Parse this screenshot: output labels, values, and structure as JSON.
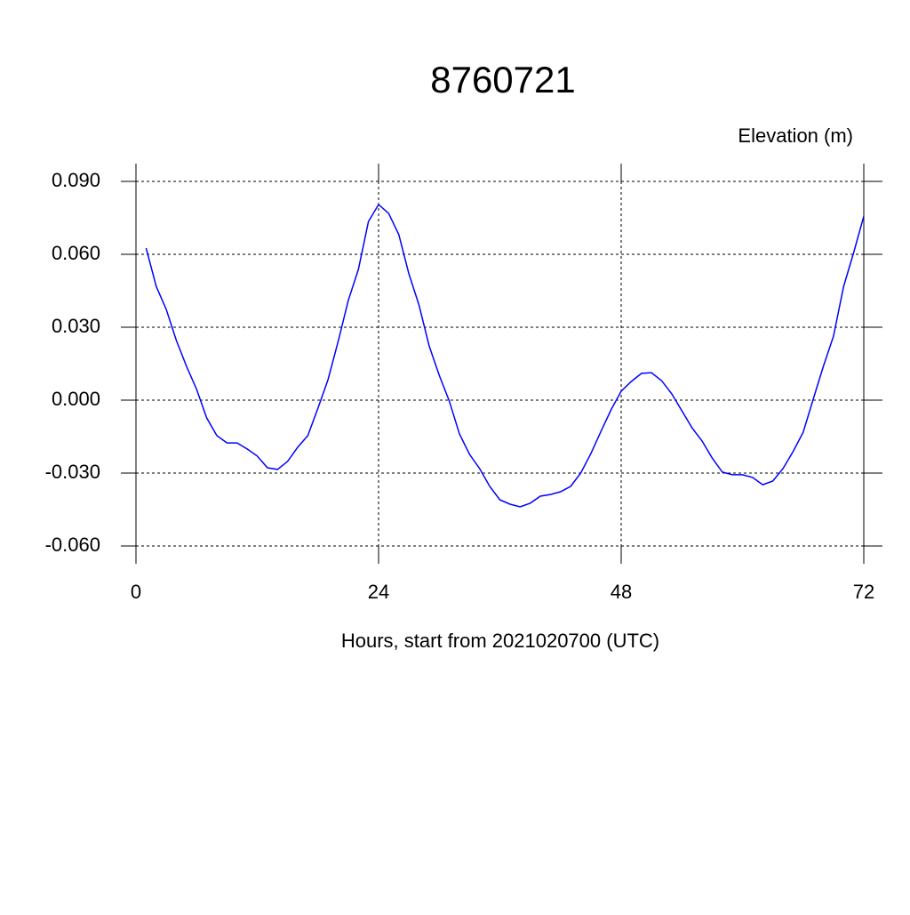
{
  "chart_data": {
    "type": "line",
    "title": "8760721",
    "ylabel": "Elevation (m)",
    "xlabel": "Hours, start from 2021020700 (UTC)",
    "x": [
      1,
      2,
      3,
      4,
      5,
      6,
      7,
      8,
      9,
      10,
      11,
      12,
      13,
      14,
      15,
      16,
      17,
      18,
      19,
      20,
      21,
      22,
      23,
      24,
      25,
      26,
      27,
      28,
      29,
      30,
      31,
      32,
      33,
      34,
      35,
      36,
      37,
      38,
      39,
      40,
      41,
      42,
      43,
      44,
      45,
      46,
      47,
      48,
      49,
      50,
      51,
      52,
      53,
      54,
      55,
      56,
      57,
      58,
      59,
      60,
      61,
      62,
      63,
      64,
      65,
      66,
      67,
      68,
      69,
      70,
      71,
      72
    ],
    "series": [
      {
        "name": "Elevation",
        "color": "#0000ff",
        "values": [
          0.0626,
          0.0468,
          0.0373,
          0.0245,
          0.0139,
          0.0044,
          -0.0073,
          -0.0146,
          -0.0176,
          -0.0176,
          -0.0201,
          -0.023,
          -0.0278,
          -0.0285,
          -0.0252,
          -0.0194,
          -0.0146,
          -0.0033,
          0.0084,
          0.0241,
          0.041,
          0.0538,
          0.0735,
          0.0805,
          0.0768,
          0.0681,
          0.052,
          0.0391,
          0.0223,
          0.0102,
          -0.0004,
          -0.0139,
          -0.0223,
          -0.0282,
          -0.0355,
          -0.041,
          -0.0428,
          -0.0439,
          -0.0424,
          -0.0395,
          -0.0388,
          -0.0377,
          -0.0355,
          -0.03,
          -0.022,
          -0.0128,
          -0.004,
          0.0037,
          0.0077,
          0.011,
          0.0113,
          0.008,
          0.0026,
          -0.0044,
          -0.0113,
          -0.0168,
          -0.0238,
          -0.0296,
          -0.0307,
          -0.0307,
          -0.0318,
          -0.0348,
          -0.0333,
          -0.0282,
          -0.0212,
          -0.0132,
          0.0004,
          0.0139,
          0.0263,
          0.0468,
          0.0607,
          0.0757
        ]
      }
    ],
    "xlim": [
      0,
      72
    ],
    "xticks": [
      0,
      24,
      48,
      72
    ],
    "ylim": [
      -0.06,
      0.09
    ],
    "yticks": [
      {
        "value": 0.09,
        "label": "0.090"
      },
      {
        "value": 0.06,
        "label": "0.060"
      },
      {
        "value": 0.03,
        "label": "0.030"
      },
      {
        "value": 0,
        "label": "0.000"
      },
      {
        "value": -0.03,
        "label": "-0.030"
      },
      {
        "value": -0.06,
        "label": "-0.060"
      }
    ],
    "grid": true
  }
}
